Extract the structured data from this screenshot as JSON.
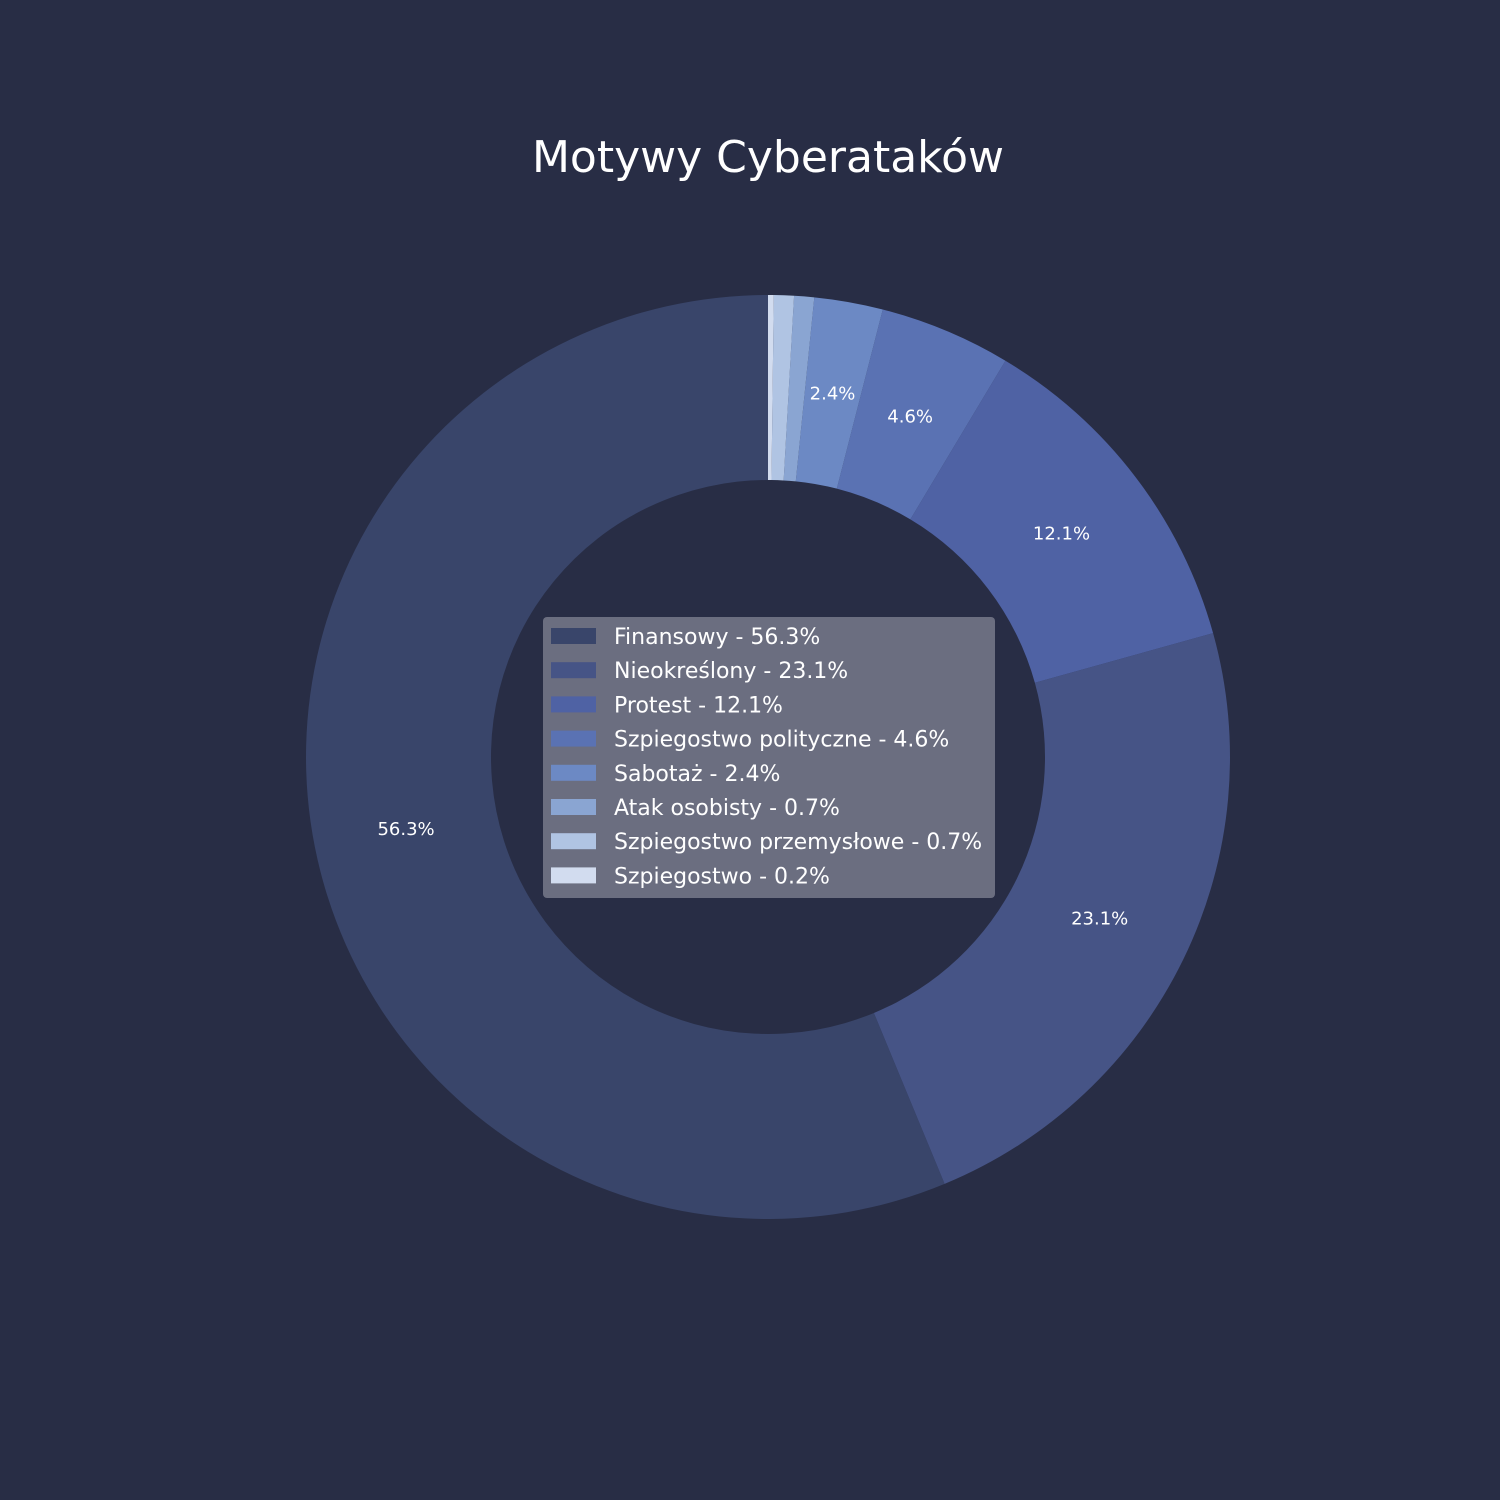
{
  "page": {
    "background": "#282d45"
  },
  "chart_data": {
    "type": "pie",
    "donut": true,
    "title": "Motywy Cyberataków",
    "start_angle_deg": 90,
    "direction": "counterclockwise",
    "slices": [
      {
        "label": "Finansowy",
        "value": 56.3,
        "color": "#39456a",
        "pct_text": "56.3%",
        "legend_text": "Finansowy - 56.3%",
        "show_pct": true
      },
      {
        "label": "Nieokreślony",
        "value": 23.1,
        "color": "#465486",
        "pct_text": "23.1%",
        "legend_text": "Nieokreślony - 23.1%",
        "show_pct": true
      },
      {
        "label": "Protest",
        "value": 12.1,
        "color": "#4f62a4",
        "pct_text": "12.1%",
        "legend_text": "Protest - 12.1%",
        "show_pct": true
      },
      {
        "label": "Szpiegostwo polityczne",
        "value": 4.6,
        "color": "#5a72b3",
        "pct_text": "4.6%",
        "legend_text": "Szpiegostwo polityczne - 4.6%",
        "show_pct": true
      },
      {
        "label": "Sabotaż",
        "value": 2.4,
        "color": "#6c89c4",
        "pct_text": "2.4%",
        "legend_text": "Sabotaż - 2.4%",
        "show_pct": true
      },
      {
        "label": "Atak osobisty",
        "value": 0.7,
        "color": "#8aa5d2",
        "pct_text": "0.7%",
        "legend_text": "Atak osobisty - 0.7%",
        "show_pct": false
      },
      {
        "label": "Szpiegostwo przemysłowe",
        "value": 0.7,
        "color": "#b0c4e3",
        "pct_text": "0.7%",
        "legend_text": "Szpiegostwo przemysłowe - 0.7%",
        "show_pct": false
      },
      {
        "label": "Szpiegostwo",
        "value": 0.2,
        "color": "#d2dcef",
        "pct_text": "0.2%",
        "legend_text": "Szpiegostwo - 0.2%",
        "show_pct": false
      }
    ],
    "legend": {
      "position": "center",
      "background": "#6b6e80"
    }
  }
}
